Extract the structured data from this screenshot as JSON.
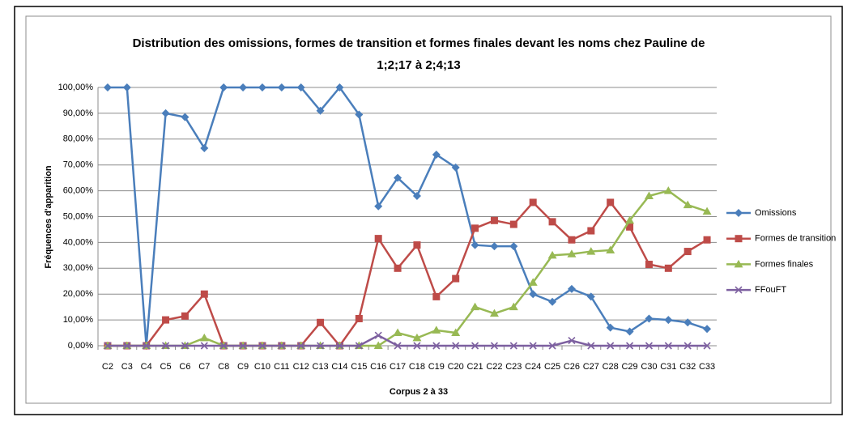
{
  "chart_data": {
    "type": "line",
    "title": "Distribution des omissions, formes de transition et formes finales devant les noms chez Pauline de 1;2;17 à 2;4;13",
    "x_label": "Corpus 2 à 33",
    "y_label": "Fréquences d'apparition",
    "categories": [
      "C2",
      "C3",
      "C4",
      "C5",
      "C6",
      "C7",
      "C8",
      "C9",
      "C10",
      "C11",
      "C12",
      "C13",
      "C14",
      "C15",
      "C16",
      "C17",
      "C18",
      "C19",
      "C20",
      "C21",
      "C22",
      "C23",
      "C24",
      "C25",
      "C26",
      "C27",
      "C28",
      "C29",
      "C30",
      "C31",
      "C32",
      "C33"
    ],
    "series": [
      {
        "name": "Omissions",
        "color": "#4a7ebb",
        "marker": "diamond",
        "values": [
          100,
          100,
          0,
          90,
          88.5,
          76.5,
          100,
          100,
          100,
          100,
          100,
          91,
          100,
          89.5,
          54,
          65,
          58,
          74,
          69,
          39,
          38.5,
          38.5,
          20,
          17,
          22,
          19,
          7,
          5.5,
          10.5,
          10,
          9,
          6.5
        ]
      },
      {
        "name": "Formes de transition",
        "color": "#be4b48",
        "marker": "square",
        "values": [
          0,
          0,
          0,
          10,
          11.5,
          20,
          0,
          0,
          0,
          0,
          0,
          9,
          0,
          10.5,
          41.5,
          30,
          39,
          19,
          26,
          45.5,
          48.5,
          47,
          55.5,
          48,
          41,
          44.5,
          55.5,
          46,
          31.5,
          30,
          36.5,
          41
        ]
      },
      {
        "name": "Formes finales",
        "color": "#98b954",
        "marker": "triangle",
        "values": [
          0,
          0,
          0,
          0,
          0,
          3,
          0,
          0,
          0,
          0,
          0,
          0,
          0,
          0,
          0,
          5,
          3,
          6,
          5,
          15,
          12.5,
          15,
          24.5,
          35,
          35.5,
          36.5,
          37,
          48.5,
          58,
          60,
          54.5,
          52
        ]
      },
      {
        "name": "FFouFT",
        "color": "#7d60a0",
        "marker": "x",
        "values": [
          0,
          0,
          0,
          0,
          0,
          0,
          0,
          0,
          0,
          0,
          0,
          0,
          0,
          0,
          4,
          0,
          0,
          0,
          0,
          0,
          0,
          0,
          0,
          0,
          2,
          0,
          0,
          0,
          0,
          0,
          0,
          0
        ]
      }
    ],
    "ylim": [
      0,
      100
    ],
    "yticks": [
      {
        "value": 0,
        "label": "0,00%"
      },
      {
        "value": 10,
        "label": "10,00%"
      },
      {
        "value": 20,
        "label": "20,00%"
      },
      {
        "value": 30,
        "label": "30,00%"
      },
      {
        "value": 40,
        "label": "40,00%"
      },
      {
        "value": 50,
        "label": "50,00%"
      },
      {
        "value": 60,
        "label": "60,00%"
      },
      {
        "value": 70,
        "label": "70,00%"
      },
      {
        "value": 80,
        "label": "80,00%"
      },
      {
        "value": 90,
        "label": "90,00%"
      },
      {
        "value": 100,
        "label": "100,00%"
      }
    ],
    "grid": true,
    "legend": "right"
  }
}
